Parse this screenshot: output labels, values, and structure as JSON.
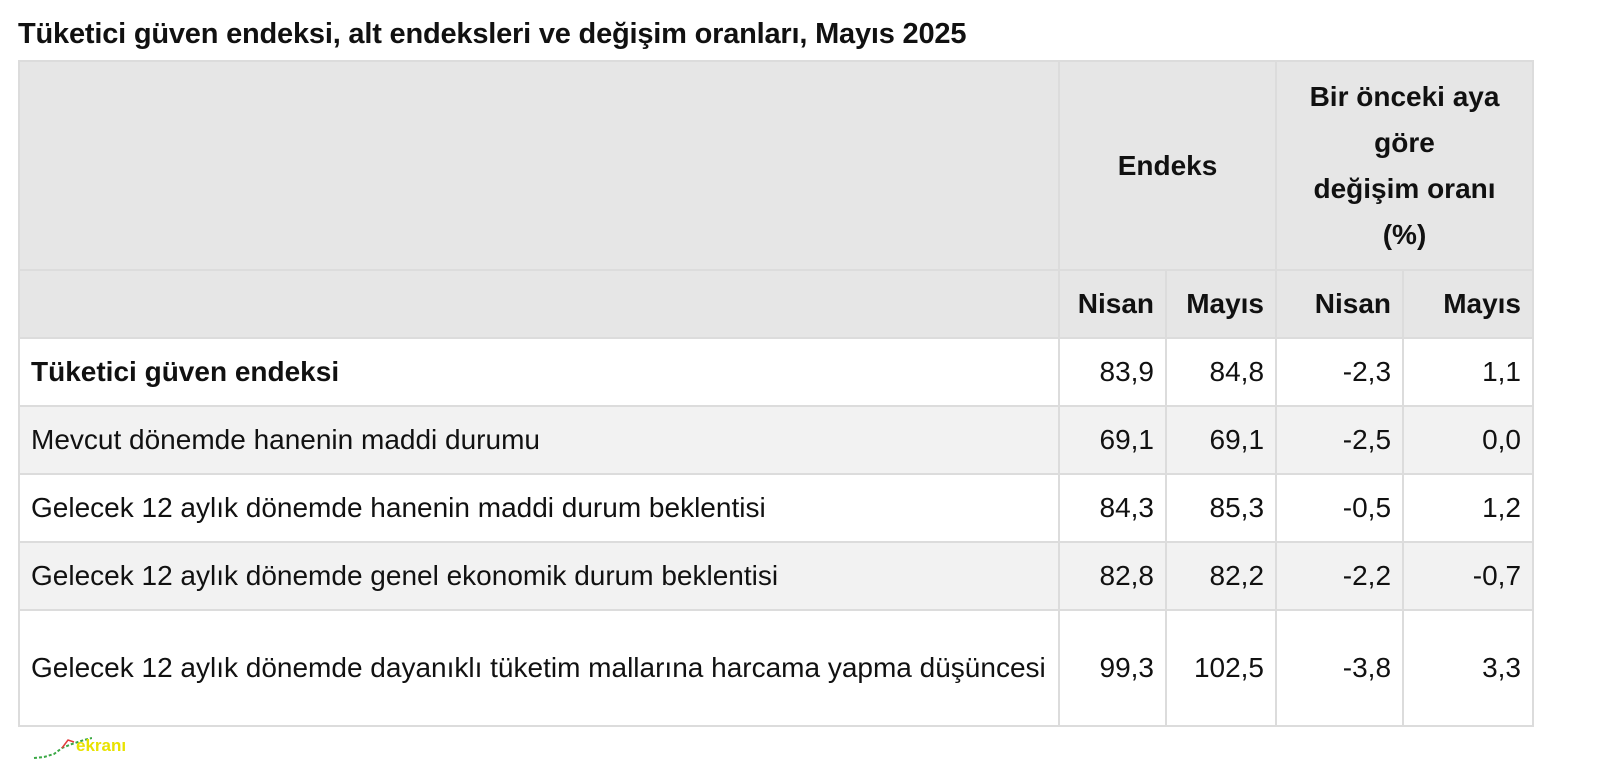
{
  "title": "Tüketici güven endeksi, alt endeksleri ve değişim oranları, Mayıs 2025",
  "table": {
    "header": {
      "group1": "Endeks",
      "group2_lines": [
        "Bir önceki aya",
        "göre",
        "değişim oranı",
        "(%)"
      ],
      "subheaders": [
        "Nisan",
        "Mayıs",
        "Nisan",
        "Mayıs"
      ]
    },
    "rows": [
      [
        "Tüketici güven endeksi",
        "83,9",
        "84,8",
        "-2,3",
        "1,1"
      ],
      [
        "Mevcut dönemde hanenin maddi durumu",
        "69,1",
        "69,1",
        "-2,5",
        "0,0"
      ],
      [
        "Gelecek 12 aylık dönemde hanenin maddi durum beklentisi",
        "84,3",
        "85,3",
        "-0,5",
        "1,2"
      ],
      [
        "Gelecek 12 aylık dönemde genel ekonomik durum beklentisi",
        "82,8",
        "82,2",
        "-2,2",
        "-0,7"
      ],
      [
        "Gelecek 12 aylık dönemde dayanıklı tüketim mallarına harcama yapma düşüncesi",
        "99,3",
        "102,5",
        "-3,8",
        "3,3"
      ]
    ],
    "bold_rows": [
      0
    ]
  },
  "logo": "ekranı"
}
